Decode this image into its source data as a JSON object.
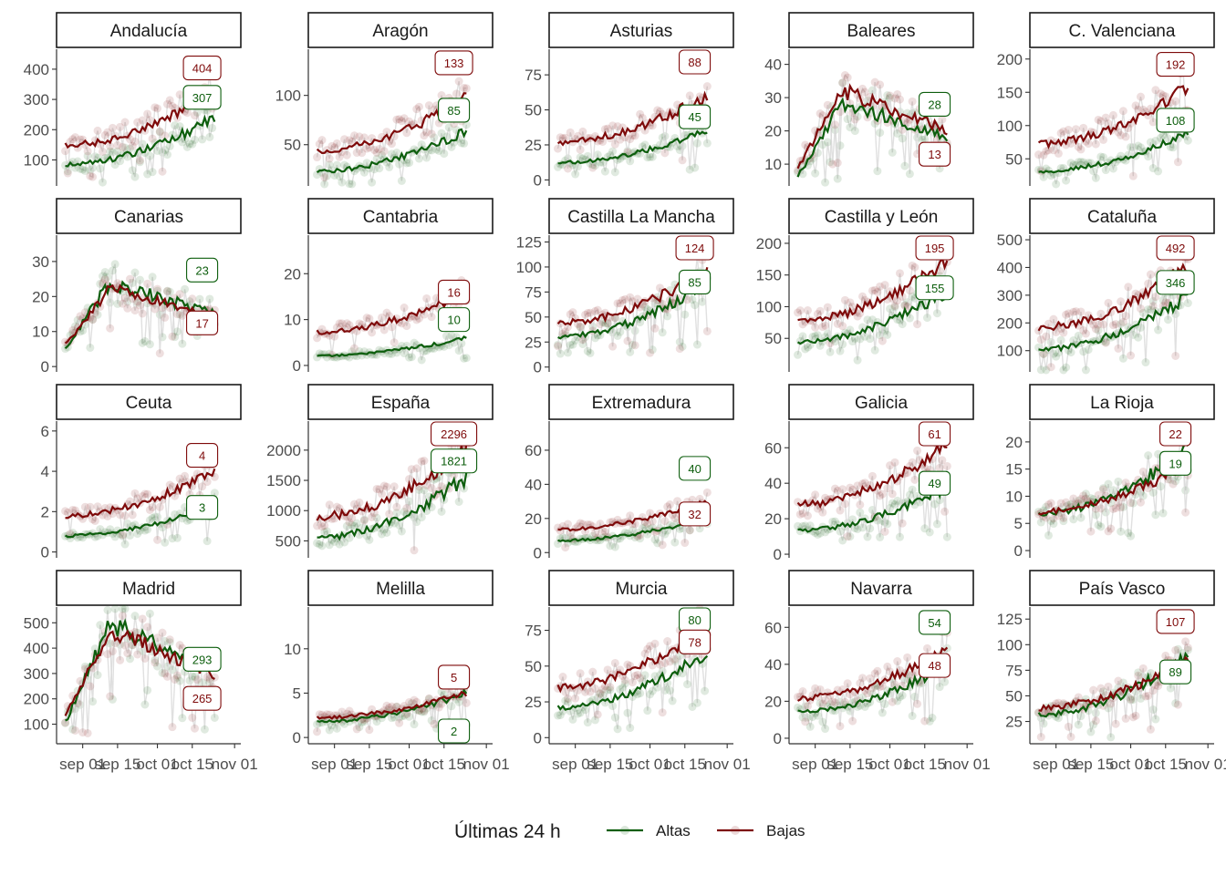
{
  "chart_data": {
    "type": "line",
    "panels": [
      {
        "name": "Andalucía",
        "ylim": [
          20,
          460
        ],
        "yticks": [
          100,
          200,
          300,
          400
        ],
        "altas_end": 240,
        "bajas_end": 330,
        "altas_label": 307,
        "bajas_label": 404
      },
      {
        "name": "Aragón",
        "ylim": [
          10,
          145
        ],
        "yticks": [
          50,
          100
        ],
        "altas_end": 65,
        "bajas_end": 98,
        "altas_label": 85,
        "bajas_label": 133
      },
      {
        "name": "Asturias",
        "ylim": [
          -3,
          92
        ],
        "yticks": [
          0,
          25,
          50,
          75
        ],
        "altas_end": 35,
        "bajas_end": 60,
        "altas_label": 45,
        "bajas_label": 88
      },
      {
        "name": "Baleares",
        "ylim": [
          4,
          44
        ],
        "yticks": [
          10,
          20,
          30,
          40
        ],
        "altas_end": 18,
        "bajas_end": 20,
        "altas_label": 28,
        "bajas_label": 13
      },
      {
        "name": "C. Valenciana",
        "ylim": [
          12,
          212
        ],
        "yticks": [
          50,
          100,
          150,
          200
        ],
        "altas_end": 88,
        "bajas_end": 160,
        "altas_label": 108,
        "bajas_label": 192
      },
      {
        "name": "Canarias",
        "ylim": [
          -1,
          37
        ],
        "yticks": [
          0,
          10,
          20,
          30
        ],
        "altas_end": 15,
        "bajas_end": 14,
        "altas_label": 23,
        "bajas_label": 17
      },
      {
        "name": "Cantabria",
        "ylim": [
          -1,
          28
        ],
        "yticks": [
          0,
          10,
          20
        ],
        "altas_end": 6,
        "bajas_end": 16,
        "altas_label": 10,
        "bajas_label": 16
      },
      {
        "name": "Castilla La Mancha",
        "ylim": [
          -3,
          130
        ],
        "yticks": [
          0,
          25,
          50,
          75,
          100,
          125
        ],
        "altas_end": 85,
        "bajas_end": 97,
        "altas_label": 85,
        "bajas_label": 124
      },
      {
        "name": "Castilla y León",
        "ylim": [
          0,
          210
        ],
        "yticks": [
          50,
          100,
          150,
          200
        ],
        "altas_end": 125,
        "bajas_end": 172,
        "altas_label": 155,
        "bajas_label": 195
      },
      {
        "name": "Cataluña",
        "ylim": [
          30,
          510
        ],
        "yticks": [
          100,
          200,
          300,
          400,
          500
        ],
        "altas_end": 295,
        "bajas_end": 405,
        "altas_label": 346,
        "bajas_label": 492
      },
      {
        "name": "Ceuta",
        "ylim": [
          -0.2,
          6.4
        ],
        "yticks": [
          0,
          2,
          4,
          6
        ],
        "altas_end": 2.3,
        "bajas_end": 4,
        "altas_label": 3,
        "bajas_label": 4
      },
      {
        "name": "España",
        "ylim": [
          250,
          2450
        ],
        "yticks": [
          500,
          1000,
          1500,
          2000
        ],
        "altas_end": 1550,
        "bajas_end": 2000,
        "altas_label": 1821,
        "bajas_label": 2296
      },
      {
        "name": "Extremadura",
        "ylim": [
          -2,
          76
        ],
        "yticks": [
          0,
          20,
          40,
          60
        ],
        "altas_end": 20,
        "bajas_end": 30,
        "altas_label": 40,
        "bajas_label": 32
      },
      {
        "name": "Galicia",
        "ylim": [
          -1,
          74
        ],
        "yticks": [
          0,
          20,
          40,
          60
        ],
        "altas_end": 38,
        "bajas_end": 62,
        "altas_label": 49,
        "bajas_label": 61
      },
      {
        "name": "La Rioja",
        "ylim": [
          -1,
          23.5
        ],
        "yticks": [
          0,
          5,
          10,
          15,
          20
        ],
        "altas_end": 19,
        "bajas_end": 16,
        "altas_label": 19,
        "bajas_label": 22
      },
      {
        "name": "Madrid",
        "ylim": [
          30,
          555
        ],
        "yticks": [
          100,
          200,
          300,
          400,
          500
        ],
        "altas_end": 310,
        "bajas_end": 295,
        "altas_label": 293,
        "bajas_label": 265
      },
      {
        "name": "Melilla",
        "ylim": [
          -0.5,
          14.5
        ],
        "yticks": [
          0,
          5,
          10
        ],
        "altas_end": 5,
        "bajas_end": 5,
        "altas_label": 2,
        "bajas_label": 5
      },
      {
        "name": "Murcia",
        "ylim": [
          -3,
          90
        ],
        "yticks": [
          0,
          25,
          50,
          75
        ],
        "altas_end": 60,
        "bajas_end": 78,
        "altas_label": 80,
        "bajas_label": 78
      },
      {
        "name": "Navarra",
        "ylim": [
          -2,
          70
        ],
        "yticks": [
          0,
          20,
          40,
          60
        ],
        "altas_end": 40,
        "bajas_end": 48,
        "altas_label": 54,
        "bajas_label": 48
      },
      {
        "name": "País Vasco",
        "ylim": [
          5,
          135
        ],
        "yticks": [
          25,
          50,
          75,
          100,
          125
        ],
        "altas_end": 89,
        "bajas_end": 85,
        "altas_label": 89,
        "bajas_label": 107
      }
    ],
    "x_ticks": [
      "sep 01",
      "sep 15",
      "oct 01",
      "oct 15",
      "nov 01"
    ],
    "series": [
      {
        "name": "Altas",
        "color": "#0d5e0d"
      },
      {
        "name": "Bajas",
        "color": "#7e0a0a"
      }
    ],
    "legend_title": "Últimas 24 h",
    "legend_position": "bottom",
    "grid": false
  }
}
